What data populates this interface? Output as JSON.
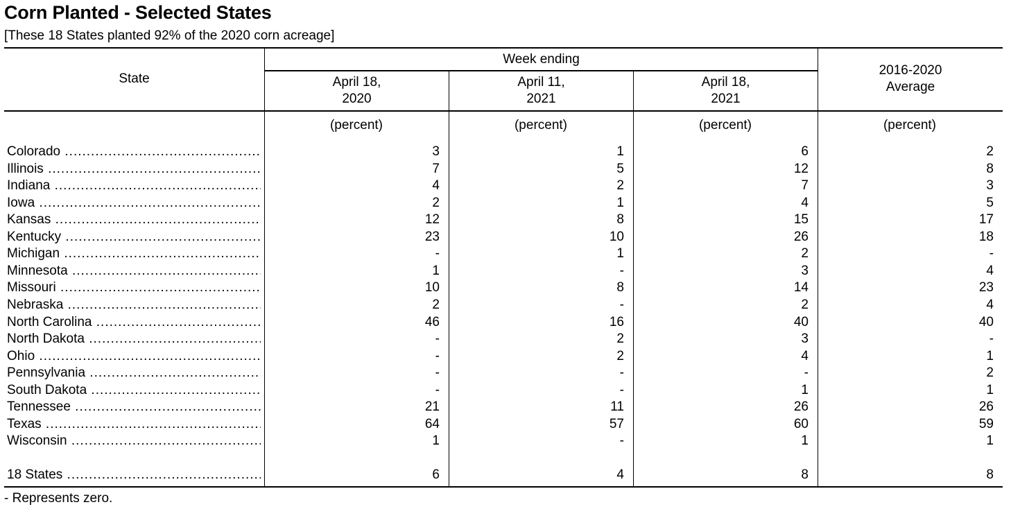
{
  "title": "Corn Planted - Selected States",
  "subtitle": "[These 18 States planted 92% of the 2020 corn acreage]",
  "header": {
    "state": "State",
    "week_ending": "Week ending",
    "col1": [
      "April 18,",
      "2020"
    ],
    "col2": [
      "April 11,",
      "2021"
    ],
    "col3": [
      "April 18,",
      "2021"
    ],
    "col4": [
      "2016-2020",
      "Average"
    ],
    "unit": "(percent)"
  },
  "rows": [
    {
      "state": "Colorado",
      "v": [
        "3",
        "1",
        "6",
        "2"
      ]
    },
    {
      "state": "Illinois",
      "v": [
        "7",
        "5",
        "12",
        "8"
      ]
    },
    {
      "state": "Indiana",
      "v": [
        "4",
        "2",
        "7",
        "3"
      ]
    },
    {
      "state": "Iowa",
      "v": [
        "2",
        "1",
        "4",
        "5"
      ]
    },
    {
      "state": "Kansas",
      "v": [
        "12",
        "8",
        "15",
        "17"
      ]
    },
    {
      "state": "Kentucky",
      "v": [
        "23",
        "10",
        "26",
        "18"
      ]
    },
    {
      "state": "Michigan",
      "v": [
        "-",
        "1",
        "2",
        "-"
      ]
    },
    {
      "state": "Minnesota",
      "v": [
        "1",
        "-",
        "3",
        "4"
      ]
    },
    {
      "state": "Missouri",
      "v": [
        "10",
        "8",
        "14",
        "23"
      ]
    },
    {
      "state": "Nebraska",
      "v": [
        "2",
        "-",
        "2",
        "4"
      ]
    },
    {
      "state": "North Carolina",
      "v": [
        "46",
        "16",
        "40",
        "40"
      ]
    },
    {
      "state": "North Dakota",
      "v": [
        "-",
        "2",
        "3",
        "-"
      ]
    },
    {
      "state": "Ohio",
      "v": [
        "-",
        "2",
        "4",
        "1"
      ]
    },
    {
      "state": "Pennsylvania",
      "v": [
        "-",
        "-",
        "-",
        "2"
      ]
    },
    {
      "state": "South Dakota",
      "v": [
        "-",
        "-",
        "1",
        "1"
      ]
    },
    {
      "state": "Tennessee",
      "v": [
        "21",
        "11",
        "26",
        "26"
      ]
    },
    {
      "state": "Texas",
      "v": [
        "64",
        "57",
        "60",
        "59"
      ]
    },
    {
      "state": "Wisconsin",
      "v": [
        "1",
        "-",
        "1",
        "1"
      ]
    }
  ],
  "total": {
    "state": "18 States",
    "v": [
      "6",
      "4",
      "8",
      "8"
    ]
  },
  "footnote": "- Represents zero."
}
